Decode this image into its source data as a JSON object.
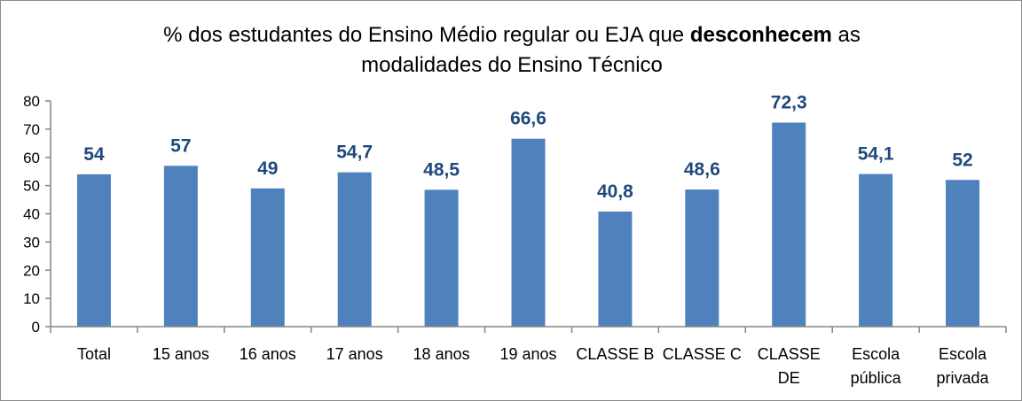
{
  "chart_data": {
    "type": "bar",
    "title": {
      "line1_prefix": "% dos estudantes do Ensino Médio regular ou EJA que ",
      "line1_bold": "desconhecem",
      "line1_suffix": " as",
      "line2": "modalidades do Ensino Técnico"
    },
    "categories": [
      [
        "Total"
      ],
      [
        "15 anos"
      ],
      [
        "16 anos"
      ],
      [
        "17 anos"
      ],
      [
        "18 anos"
      ],
      [
        "19 anos"
      ],
      [
        "CLASSE B"
      ],
      [
        "CLASSE C"
      ],
      [
        "CLASSE",
        "DE"
      ],
      [
        "Escola",
        "pública"
      ],
      [
        "Escola",
        "privada"
      ]
    ],
    "values": [
      54,
      57,
      49,
      54.7,
      48.5,
      66.6,
      40.8,
      48.6,
      72.3,
      54.1,
      52
    ],
    "data_labels": [
      "54",
      "57",
      "49",
      "54,7",
      "48,5",
      "66,6",
      "40,8",
      "48,6",
      "72,3",
      "54,1",
      "52"
    ],
    "ylim": [
      0,
      80
    ],
    "yticks": [
      0,
      10,
      20,
      30,
      40,
      50,
      60,
      70,
      80
    ],
    "grid": false,
    "legend": "none",
    "xlabel": "",
    "ylabel": "",
    "colors": {
      "bar": "#4f81bd",
      "data_label": "#1f497d",
      "axis": "#868686"
    }
  }
}
